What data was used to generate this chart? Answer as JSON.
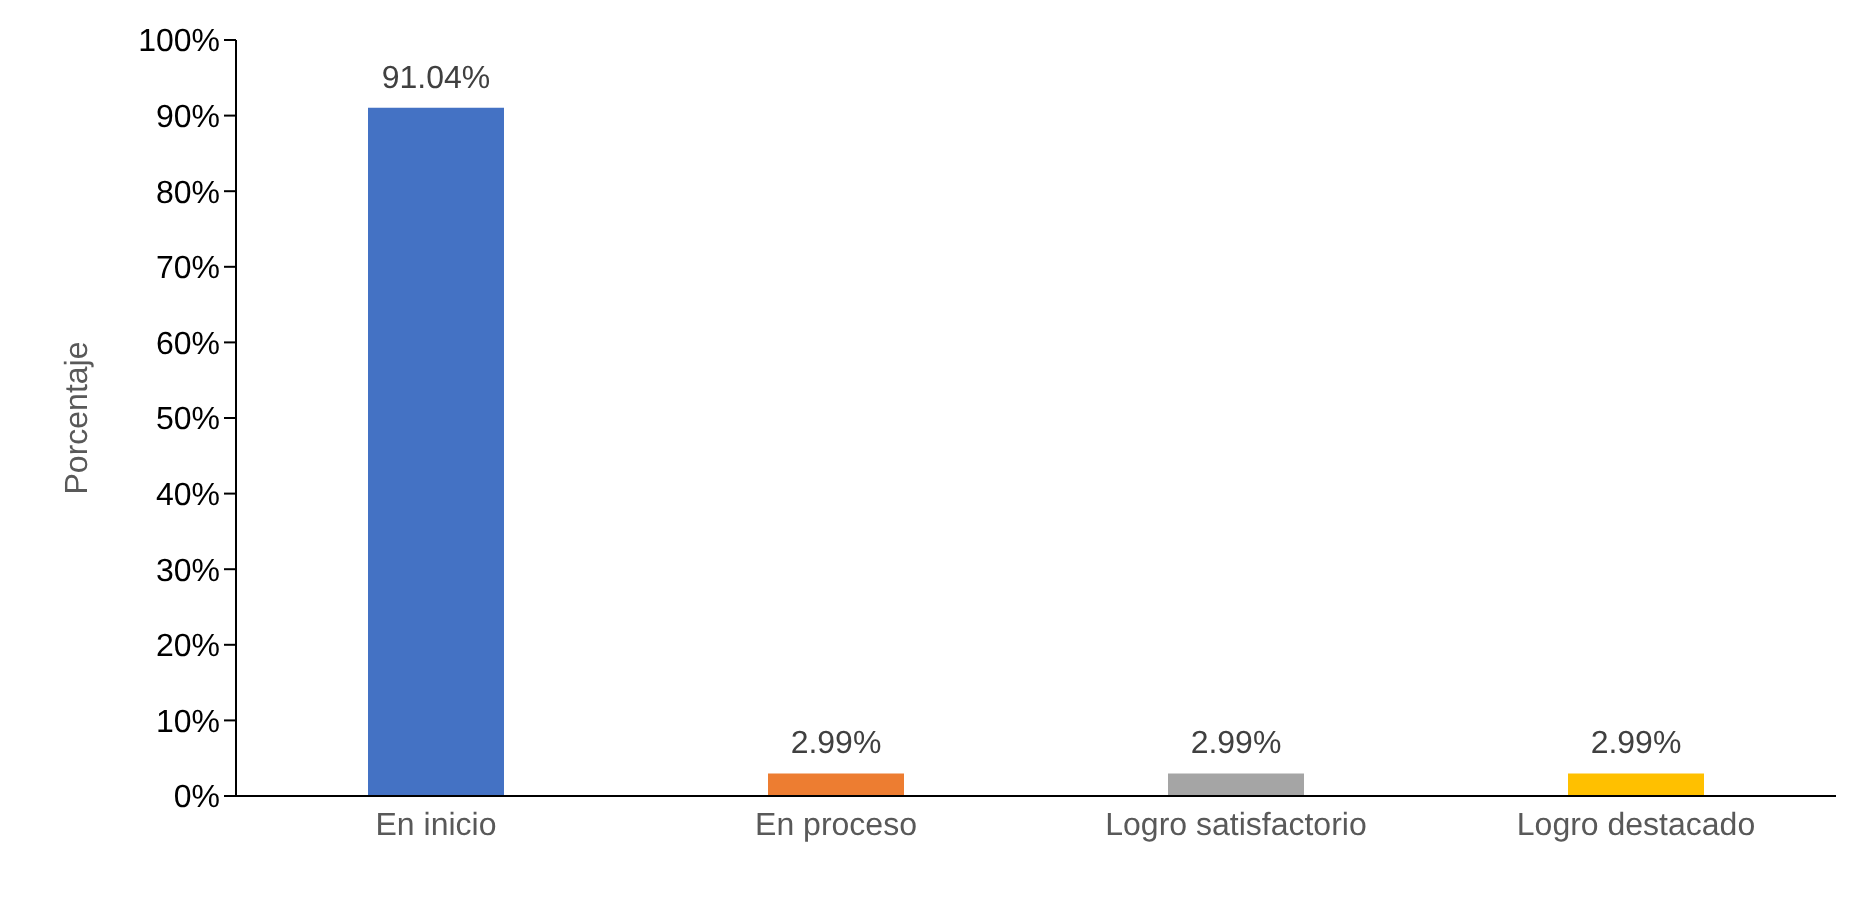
{
  "chart_data": {
    "type": "bar",
    "ylabel": "Porcentaje",
    "categories": [
      "En inicio",
      "En proceso",
      "Logro satisfactorio",
      "Logro destacado"
    ],
    "values": [
      91.04,
      2.99,
      2.99,
      2.99
    ],
    "value_labels": [
      "91.04%",
      "2.99%",
      "2.99%",
      "2.99%"
    ],
    "colors": [
      "#4472c4",
      "#ed7d31",
      "#a5a5a5",
      "#ffc000"
    ],
    "ylim": [
      0,
      100
    ],
    "yticks": [
      {
        "value": 0,
        "label": "0%"
      },
      {
        "value": 10,
        "label": "10%"
      },
      {
        "value": 20,
        "label": "20%"
      },
      {
        "value": 30,
        "label": "30%"
      },
      {
        "value": 40,
        "label": "40%"
      },
      {
        "value": 50,
        "label": "50%"
      },
      {
        "value": 60,
        "label": "60%"
      },
      {
        "value": 70,
        "label": "70%"
      },
      {
        "value": 80,
        "label": "80%"
      },
      {
        "value": 90,
        "label": "90%"
      },
      {
        "value": 100,
        "label": "100%"
      }
    ],
    "grid": false,
    "legend": false
  }
}
